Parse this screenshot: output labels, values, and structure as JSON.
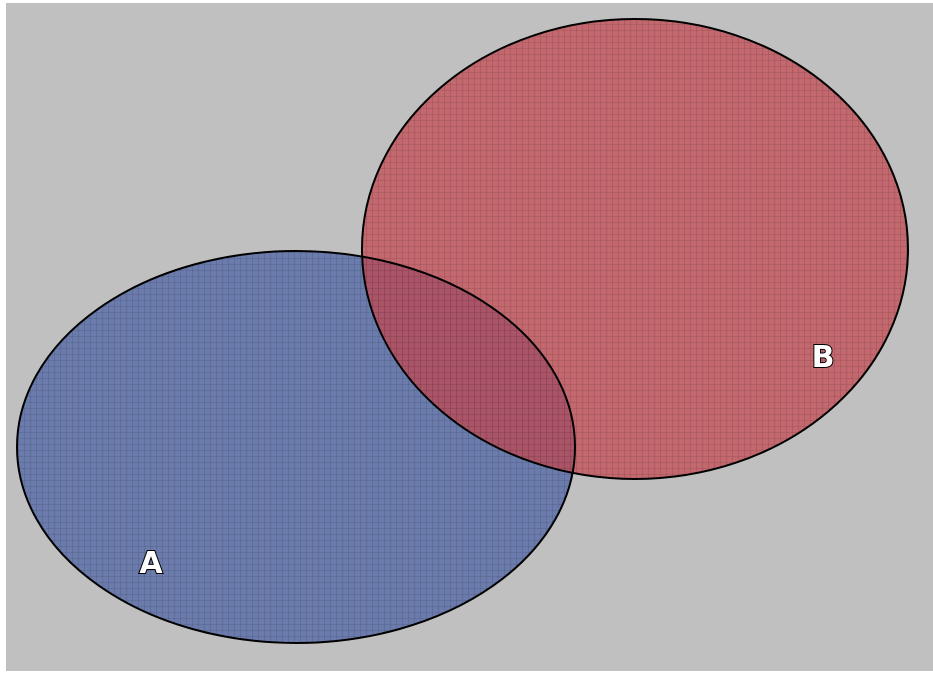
{
  "diagram": {
    "type": "venn",
    "colors": {
      "background": "#c0c0c0",
      "set_a_fill": "#5a6ea8",
      "set_b_fill": "#c4454e",
      "grid_line": "#000000",
      "outline": "#000000"
    },
    "sets": [
      {
        "id": "A",
        "label": "A"
      },
      {
        "id": "B",
        "label": "B"
      }
    ]
  }
}
